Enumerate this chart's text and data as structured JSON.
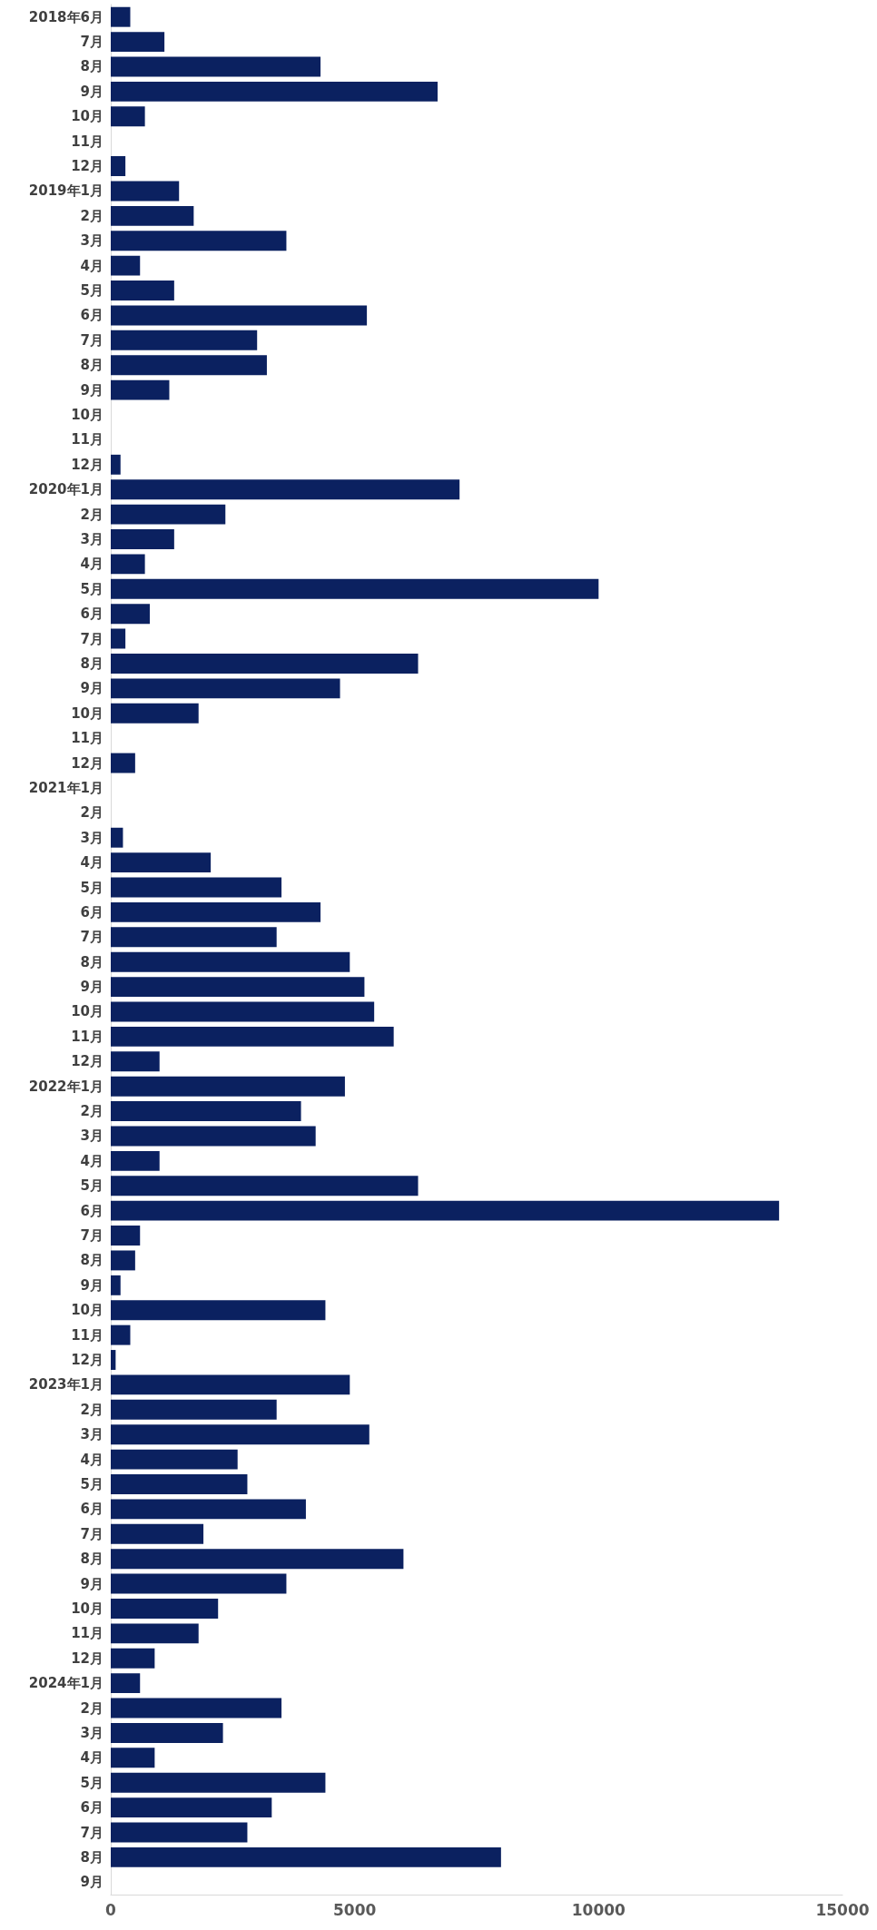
{
  "chart_data": {
    "type": "bar",
    "orientation": "horizontal",
    "categories": [
      "2018年6月",
      "7月",
      "8月",
      "9月",
      "10月",
      "11月",
      "12月",
      "2019年1月",
      "2月",
      "3月",
      "4月",
      "5月",
      "6月",
      "7月",
      "8月",
      "9月",
      "10月",
      "11月",
      "12月",
      "2020年1月",
      "2月",
      "3月",
      "4月",
      "5月",
      "6月",
      "7月",
      "8月",
      "9月",
      "10月",
      "11月",
      "12月",
      "2021年1月",
      "2月",
      "3月",
      "4月",
      "5月",
      "6月",
      "7月",
      "8月",
      "9月",
      "10月",
      "11月",
      "12月",
      "2022年1月",
      "2月",
      "3月",
      "4月",
      "5月",
      "6月",
      "7月",
      "8月",
      "9月",
      "10月",
      "11月",
      "12月",
      "2023年1月",
      "2月",
      "3月",
      "4月",
      "5月",
      "6月",
      "7月",
      "8月",
      "9月",
      "10月",
      "11月",
      "12月",
      "2024年1月",
      "2月",
      "3月",
      "4月",
      "5月",
      "6月",
      "7月",
      "8月",
      "9月"
    ],
    "values": [
      400,
      1100,
      4300,
      6700,
      700,
      0,
      300,
      1400,
      1700,
      3600,
      600,
      1300,
      5250,
      3000,
      3200,
      1200,
      0,
      0,
      200,
      7150,
      2350,
      1300,
      700,
      10000,
      800,
      300,
      6300,
      4700,
      1800,
      0,
      500,
      0,
      0,
      250,
      2050,
      3500,
      4300,
      3400,
      4900,
      5200,
      5400,
      5800,
      1000,
      4800,
      3900,
      4200,
      1000,
      6300,
      13700,
      600,
      500,
      200,
      4400,
      400,
      100,
      4900,
      3400,
      5300,
      2600,
      2800,
      4000,
      1900,
      6000,
      3600,
      2200,
      1800,
      900,
      600,
      3500,
      2300,
      900,
      4400,
      3300,
      2800,
      8000,
      0
    ],
    "color": "#0b2160",
    "xlim": [
      0,
      15000
    ],
    "xticks": [
      0,
      5000,
      10000,
      15000
    ],
    "grid": false
  }
}
